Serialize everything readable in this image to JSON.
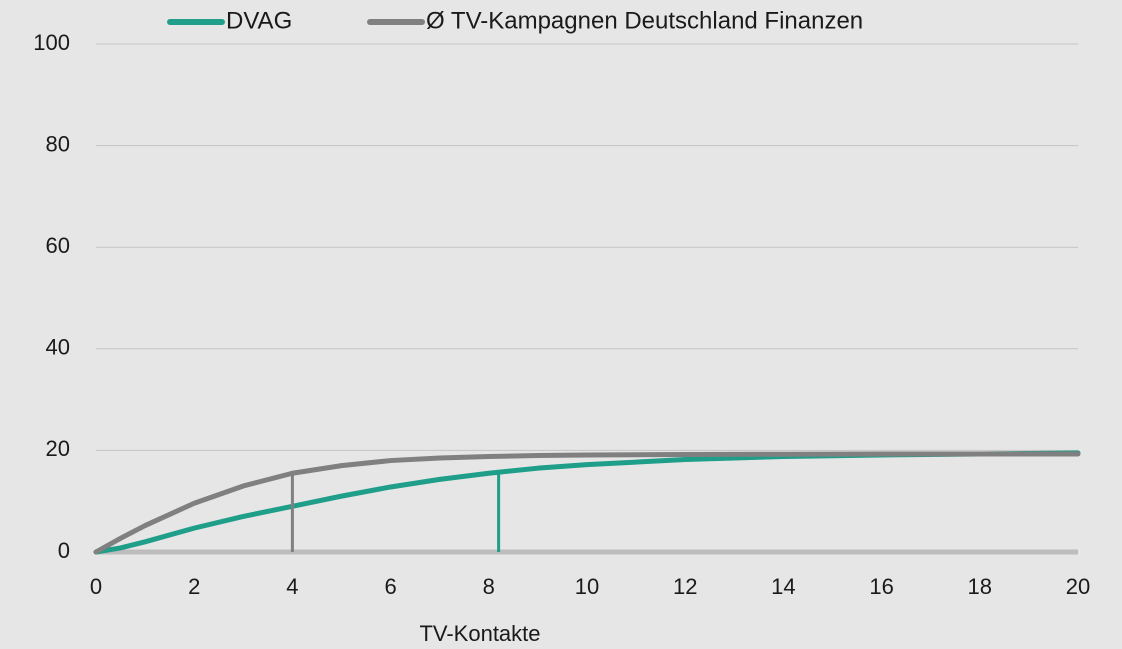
{
  "chart_data": {
    "type": "line",
    "x_label": "TV-Kontakte",
    "x": [
      0,
      0.5,
      1,
      2,
      3,
      4,
      5,
      6,
      7,
      8,
      9,
      10,
      12,
      14,
      16,
      18,
      20
    ],
    "series": [
      {
        "name": "DVAG",
        "color": "#1f9e89",
        "values": [
          0,
          0.8,
          2,
          4.7,
          7,
          9,
          11,
          12.8,
          14.3,
          15.5,
          16.5,
          17.2,
          18.2,
          18.8,
          19.1,
          19.3,
          19.5
        ]
      },
      {
        "name": "Ø TV-Kampagnen Deutschland Finanzen",
        "color": "#808080",
        "values": [
          0,
          2.7,
          5.2,
          9.6,
          13,
          15.5,
          17,
          18,
          18.5,
          18.8,
          19,
          19.1,
          19.2,
          19.25,
          19.3,
          19.3,
          19.3
        ]
      }
    ],
    "markers": [
      {
        "x": 4,
        "y": 15.5,
        "color": "#808080"
      },
      {
        "x": 8.2,
        "y": 15.7,
        "color": "#1f9e89"
      }
    ],
    "xlim": [
      0,
      20
    ],
    "xticks": [
      0,
      2,
      4,
      6,
      8,
      10,
      12,
      14,
      16,
      18,
      20
    ],
    "ylim": [
      0,
      100
    ],
    "yticks": [
      0,
      20,
      40,
      60,
      80,
      100
    ],
    "grid": true,
    "legend": "top"
  }
}
